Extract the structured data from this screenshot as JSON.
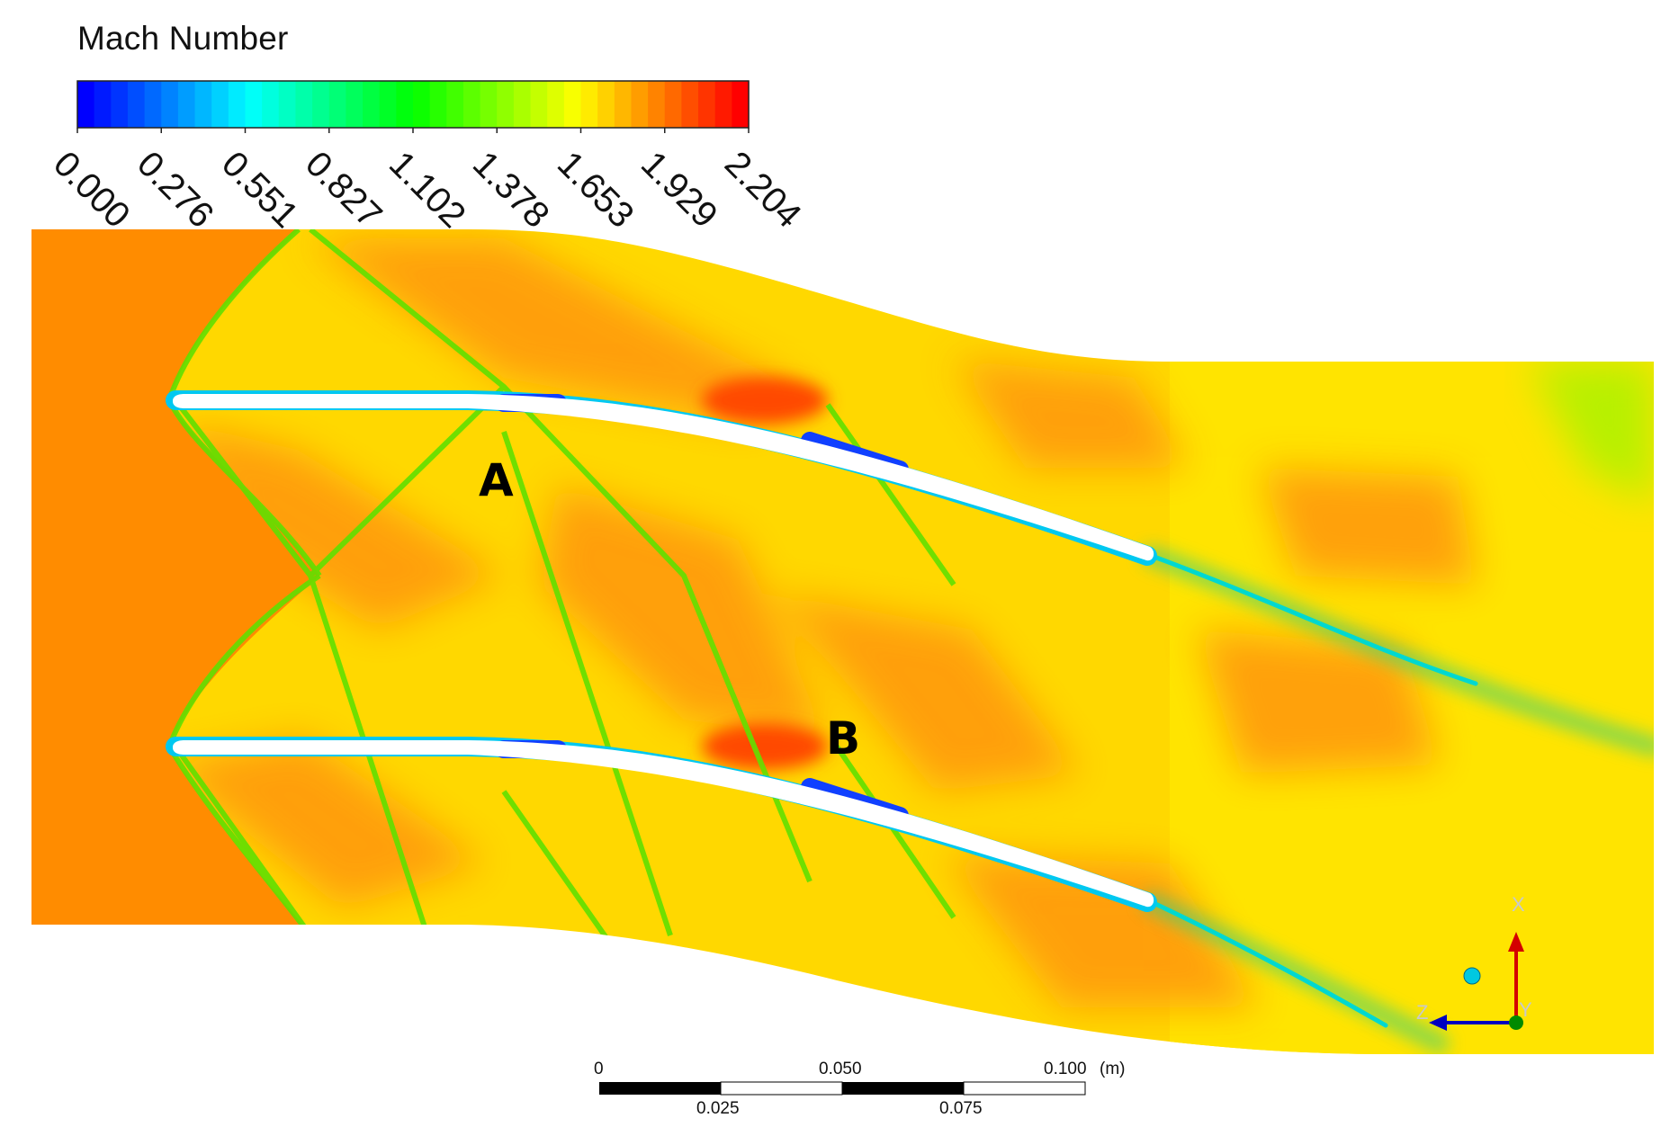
{
  "legend": {
    "title": "Mach Number",
    "ticks": [
      "0.000",
      "0.276",
      "0.551",
      "0.827",
      "1.102",
      "1.378",
      "1.653",
      "1.929",
      "2.204"
    ],
    "min": 0.0,
    "max": 2.204,
    "levels": 40,
    "colormap": [
      "#0000ff",
      "#00ffff",
      "#00ff00",
      "#ffff00",
      "#ff0000"
    ]
  },
  "annotations": {
    "point_a": "A",
    "point_b": "B"
  },
  "scale_bar": {
    "top_labels": [
      "0",
      "0.050",
      "0.100"
    ],
    "bottom_labels": [
      "0.025",
      "0.075"
    ],
    "unit": "(m)"
  },
  "axes_triad": {
    "x": "X",
    "y": "Y",
    "z": "Z"
  },
  "colors": {
    "freestream": "#ff8c00",
    "passage": "#ffd400",
    "outlet": "#ffe800",
    "wake": "#00e0c0",
    "blade": "#ffffff",
    "x_axis": "#e00000",
    "z_axis": "#0000c8",
    "y_axis": "#008000",
    "origin_sphere": "#00c8e0"
  }
}
